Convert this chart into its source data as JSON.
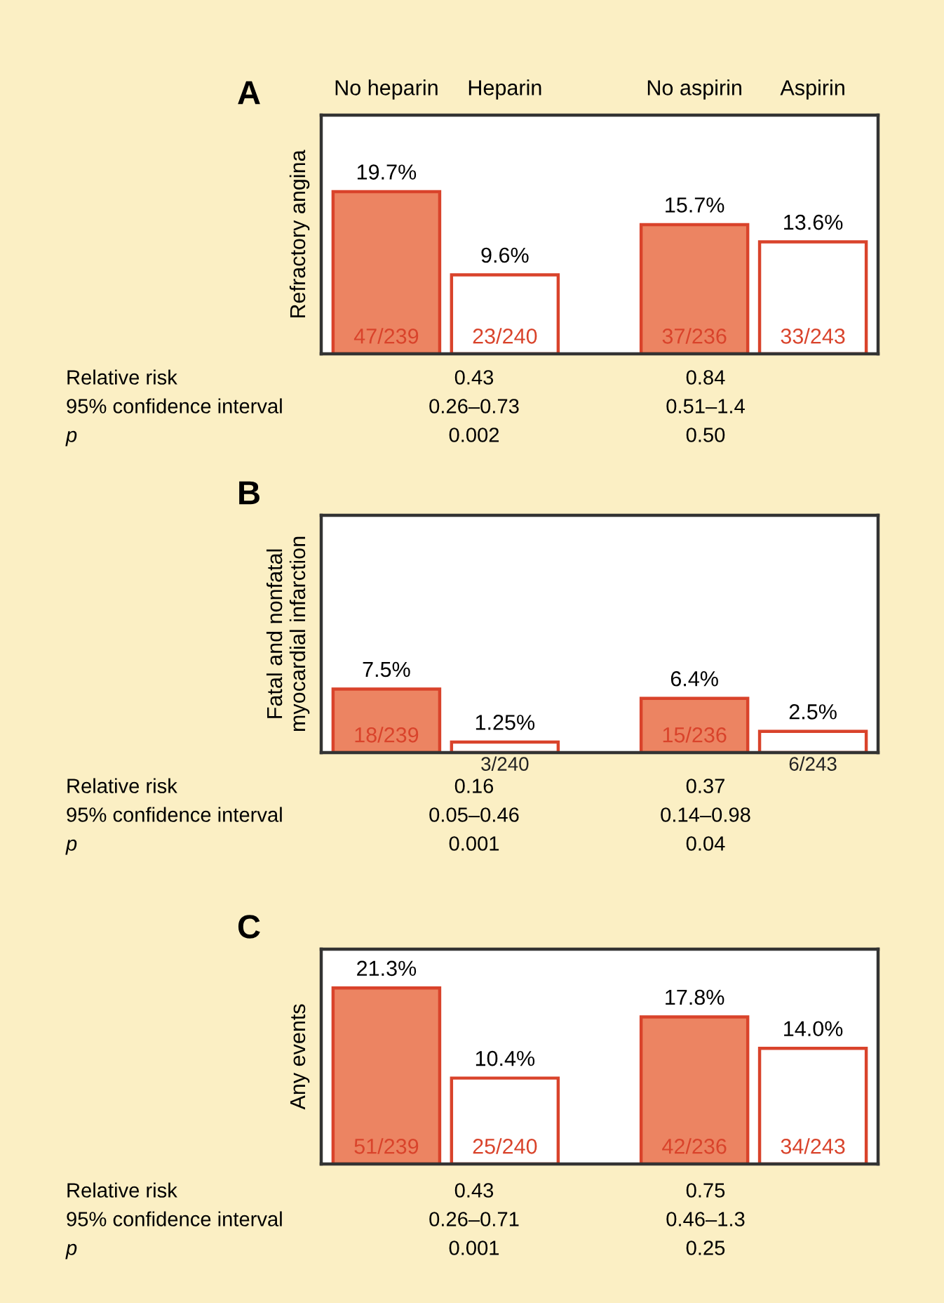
{
  "chart_data": [
    {
      "type": "bar",
      "title": "A",
      "ylabel": "Refractory angina",
      "categories": [
        "No heparin",
        "Heparin",
        "No aspirin",
        "Aspirin"
      ],
      "values": [
        19.7,
        9.6,
        15.7,
        13.6
      ],
      "value_labels": [
        "19.7%",
        "9.6%",
        "15.7%",
        "13.6%"
      ],
      "colors": [
        "#ec8462",
        "#ffffff",
        "#ec8462",
        "#ffffff"
      ],
      "ylim": [
        0,
        29
      ],
      "grid": false,
      "legend": false,
      "annotations": [
        {
          "text": "47/239",
          "y": 0
        },
        {
          "text": "23/240",
          "y": 0
        },
        {
          "text": "37/236",
          "y": 0
        },
        {
          "text": "33/243",
          "y": 0
        },
        "Relative risk",
        "0.43",
        "0.84",
        "95% confidence interval",
        "0.26–0.73",
        "0.51–1.4",
        "p",
        "0.002",
        "0.50"
      ]
    },
    {
      "type": "bar",
      "title": "B",
      "ylabel": "Fatal and nonfatal\nmyocardial infarction",
      "categories": [
        null,
        null,
        null,
        null
      ],
      "values": [
        7.5,
        1.25,
        6.4,
        2.5
      ],
      "value_labels": [
        "7.5%",
        "1.25%",
        "6.4%",
        "2.5%"
      ],
      "colors": [
        "#ec8462",
        "#ffffff",
        "#ec8462",
        "#ffffff"
      ],
      "ylim": [
        0,
        28
      ],
      "grid": false,
      "legend": false,
      "annotations": [
        {
          "text": "18/239",
          "y": 0
        },
        {
          "text": "3/240",
          "y": 0
        },
        {
          "text": "15/236",
          "y": 0
        },
        {
          "text": "6/243",
          "y": 0
        },
        "Relative risk",
        "0.16",
        "0.37",
        "95% confidence interval",
        "0.05–0.46",
        "0.14–0.98",
        "p",
        "0.001",
        "0.04"
      ]
    },
    {
      "type": "bar",
      "title": "C",
      "ylabel": "Any events",
      "categories": [
        null,
        null,
        null,
        null
      ],
      "values": [
        21.3,
        10.4,
        17.8,
        14.0
      ],
      "value_labels": [
        "21.3%",
        "10.4%",
        "17.8%",
        "14.0%"
      ],
      "colors": [
        "#ec8462",
        "#ffffff",
        "#ec8462",
        "#ffffff"
      ],
      "ylim": [
        0,
        26
      ],
      "grid": false,
      "legend": false,
      "annotations": [
        {
          "text": "51/239",
          "y": 0
        },
        {
          "text": "25/240",
          "y": 0
        },
        {
          "text": "42/236",
          "y": 0
        },
        {
          "text": "34/243",
          "y": 0
        },
        "Relative risk",
        "0.43",
        "0.75",
        "95% confidence interval",
        "0.26–0.71",
        "0.46–1.3",
        "p",
        "0.001",
        "0.25"
      ]
    }
  ]
}
